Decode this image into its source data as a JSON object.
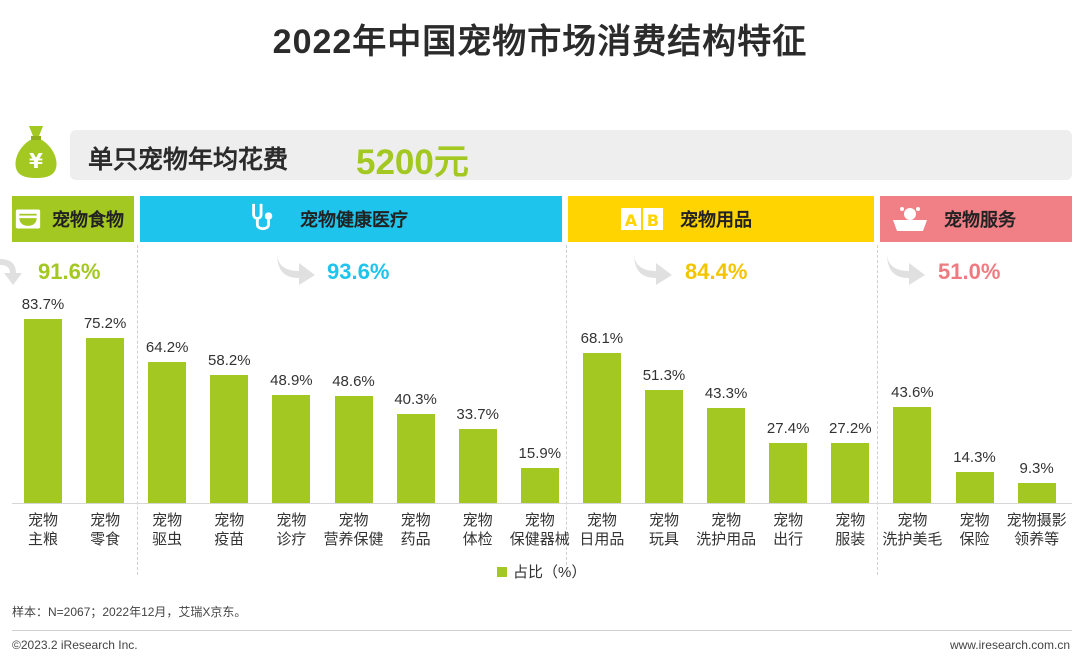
{
  "title": "2022年中国宠物市场消费结构特征",
  "annual_spend": {
    "label": "单只宠物年均花费",
    "value": "5200元"
  },
  "colors": {
    "bar": "#a3c822",
    "food": "#a3c822",
    "health": "#1fc4ec",
    "supplies": "#ffd400",
    "service": "#f07f86"
  },
  "categories": [
    {
      "name": "宠物食物",
      "pct": "91.6%",
      "pct_color": "#a3c822",
      "header_color": "#a3c822",
      "icon": "food-bowl-icon"
    },
    {
      "name": "宠物健康医疗",
      "pct": "93.6%",
      "pct_color": "#1fc4ec",
      "header_color": "#1fc4ec",
      "icon": "stethoscope-icon"
    },
    {
      "name": "宠物用品",
      "pct": "84.4%",
      "pct_color": "#f5c400",
      "header_color": "#ffd400",
      "icon": "abc-blocks-icon"
    },
    {
      "name": "宠物服务",
      "pct": "51.0%",
      "pct_color": "#ef7b82",
      "header_color": "#f07f86",
      "icon": "pet-bath-icon"
    }
  ],
  "chart_data": {
    "type": "bar",
    "ylabel": "占比（%）",
    "ylim": [
      0,
      100
    ],
    "categories": [
      "宠物\n主粮",
      "宠物\n零食",
      "宠物\n驱虫",
      "宠物\n疫苗",
      "宠物\n诊疗",
      "宠物\n营养保健",
      "宠物\n药品",
      "宠物\n体检",
      "宠物\n保健器械",
      "宠物\n日用品",
      "宠物\n玩具",
      "宠物\n洗护用品",
      "宠物\n出行",
      "宠物\n服装",
      "宠物\n洗护美毛",
      "宠物\n保险",
      "宠物摄影\n领养等"
    ],
    "values": [
      83.7,
      75.2,
      64.2,
      58.2,
      48.9,
      48.6,
      40.3,
      33.7,
      15.9,
      68.1,
      51.3,
      43.3,
      27.4,
      27.2,
      43.6,
      14.3,
      9.3
    ],
    "value_labels": [
      "83.7%",
      "75.2%",
      "64.2%",
      "58.2%",
      "48.9%",
      "48.6%",
      "40.3%",
      "33.7%",
      "15.9%",
      "68.1%",
      "51.3%",
      "43.3%",
      "27.4%",
      "27.2%",
      "43.6%",
      "14.3%",
      "9.3%"
    ],
    "legend": [
      "占比（%）"
    ]
  },
  "source": "样本：N=2067；2022年12月，艾瑞X京东。",
  "footer": {
    "copyright": "©2023.2 iResearch Inc.",
    "website": "www.iresearch.com.cn"
  }
}
